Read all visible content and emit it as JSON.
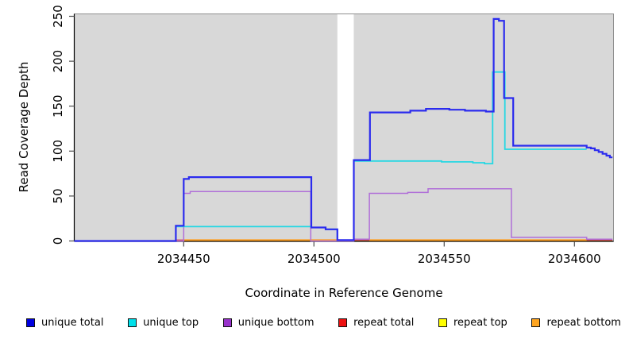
{
  "chart_data": {
    "type": "line",
    "title": "",
    "xlabel": "Coordinate in Reference Genome",
    "ylabel": "Read Coverage Depth",
    "xlim": [
      2034408,
      2034615
    ],
    "ylim": [
      0,
      250
    ],
    "xticks": [
      2034450,
      2034500,
      2034550,
      2034600
    ],
    "yticks": [
      0,
      50,
      100,
      150,
      200,
      250
    ],
    "plot_bg": "#d8d8d8",
    "border_color": "#8f8f8f",
    "axis_color": "#000000",
    "tick_color": "#4d4d4d",
    "masked_region": {
      "x0": 2034509,
      "x1": 2034515.3,
      "color": "#ffffff"
    },
    "legend_position": "bottom",
    "grid": false,
    "series": [
      {
        "name": "unique total",
        "line_color": "#2b2bee",
        "legend_color": "#0000e0",
        "width": 2.2,
        "z": 6,
        "segments": [
          [
            [
              2034408,
              0
            ],
            [
              2034447,
              17
            ],
            [
              2034450,
              69
            ],
            [
              2034452,
              71
            ],
            [
              2034499,
              15
            ],
            [
              2034504.5,
              13
            ],
            [
              2034509,
              1
            ],
            [
              2034515.3,
              90
            ],
            [
              2034521.5,
              143
            ],
            [
              2034537,
              145
            ],
            [
              2034543,
              147
            ],
            [
              2034552,
              146
            ],
            [
              2034558,
              145
            ],
            [
              2034566,
              144
            ],
            [
              2034569,
              247
            ],
            [
              2034571,
              245
            ],
            [
              2034573,
              159
            ],
            [
              2034576.5,
              106
            ],
            [
              2034604.7,
              104
            ],
            [
              2034606.3,
              103
            ],
            [
              2034607.8,
              101
            ],
            [
              2034609.3,
              99
            ],
            [
              2034610.8,
              97
            ],
            [
              2034612.3,
              95
            ],
            [
              2034613.6,
              93
            ],
            [
              2034614.6,
              93
            ]
          ]
        ]
      },
      {
        "name": "unique top",
        "line_color": "#25d7e3",
        "legend_color": "#00e0ea",
        "width": 1.8,
        "z": 5,
        "segments": [
          [
            [
              2034408,
              0
            ],
            [
              2034447,
              16
            ],
            [
              2034499,
              15
            ],
            [
              2034504.5,
              13
            ],
            [
              2034509,
              1
            ],
            [
              2034515.3,
              89
            ],
            [
              2034549,
              88
            ],
            [
              2034561,
              87
            ],
            [
              2034565.5,
              86
            ],
            [
              2034568.6,
              188
            ],
            [
              2034573.3,
              102
            ],
            [
              2034604.7,
              102
            ]
          ]
        ]
      },
      {
        "name": "unique bottom",
        "line_color": "#b06fd8",
        "legend_color": "#9933cc",
        "width": 1.5,
        "z": 4,
        "segments": [
          [
            [
              2034408,
              0
            ],
            [
              2034450,
              53
            ],
            [
              2034452.5,
              55
            ],
            [
              2034498.8,
              0
            ],
            [
              2034515.3,
              2
            ],
            [
              2034521.3,
              53
            ],
            [
              2034536,
              54
            ],
            [
              2034543.8,
              58
            ],
            [
              2034575.8,
              4
            ],
            [
              2034604.7,
              2
            ],
            [
              2034614.6,
              2
            ]
          ]
        ]
      },
      {
        "name": "repeat total",
        "line_color": "#d04458",
        "legend_color": "#ee1111",
        "width": 1.6,
        "z": 2,
        "segments": [
          [
            [
              2034447,
              1
            ],
            [
              2034614.6,
              1
            ]
          ]
        ]
      },
      {
        "name": "repeat top",
        "line_color": "#ffff00",
        "legend_color": "#ffff00",
        "width": 1.2,
        "z": 1,
        "segments": [
          [
            [
              2034447,
              0
            ],
            [
              2034614.6,
              0
            ]
          ]
        ]
      },
      {
        "name": "repeat bottom",
        "line_color": "#ff9d1e",
        "legend_color": "#ffa520",
        "width": 2,
        "z": 3,
        "segments": [
          [
            [
              2034450,
              1
            ],
            [
              2034509,
              1
            ]
          ],
          [
            [
              2034521.3,
              1
            ],
            [
              2034604.7,
              1
            ]
          ]
        ]
      }
    ]
  }
}
